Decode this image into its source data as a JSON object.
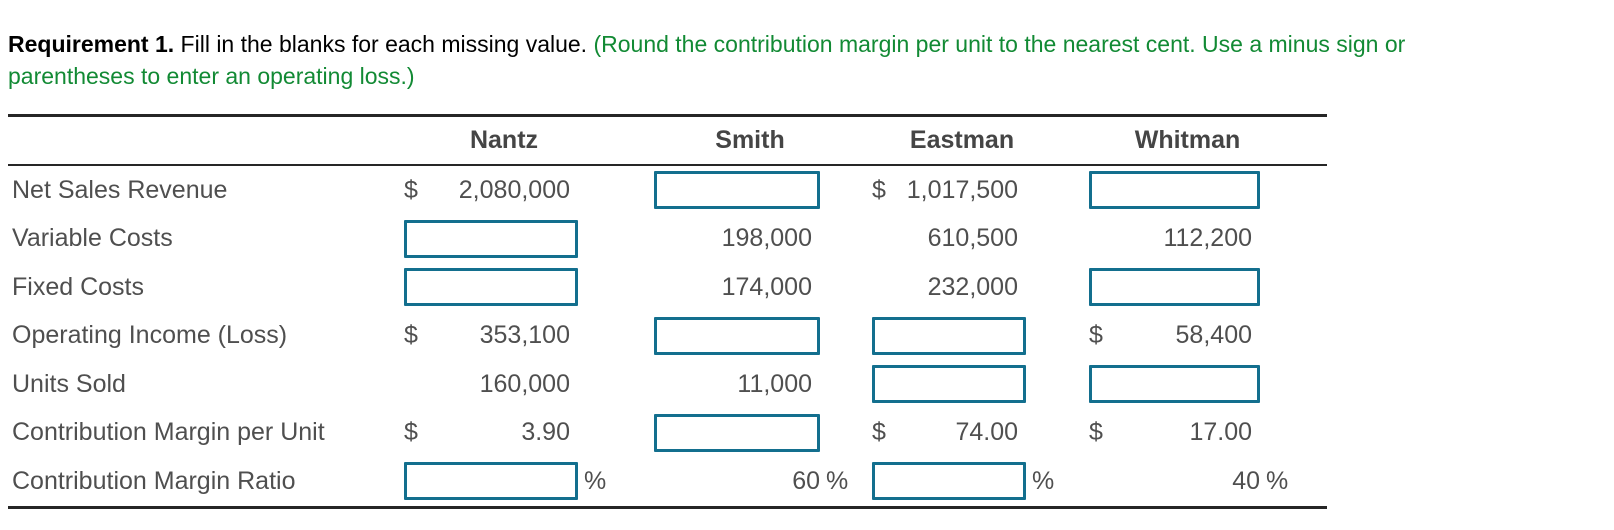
{
  "instruction": {
    "requirement_bold": "Requirement 1.",
    "body": " Fill in the blanks for each missing value. ",
    "hint_line1": "(Round the contribution margin per unit to the nearest cent. Use a minus sign or",
    "hint_line2": "parentheses to enter an operating loss.)"
  },
  "colors": {
    "hint_green": "#128a34",
    "input_border": "#136f8e",
    "rule_dark": "#262626",
    "table_text": "#4f4f4f"
  },
  "table": {
    "column_headers": [
      "Nantz",
      "Smith",
      "Eastman",
      "Whitman"
    ],
    "rows": [
      {
        "label": "Net Sales Revenue",
        "cells": [
          {
            "type": "value",
            "currency": "$",
            "value": "2,080,000"
          },
          {
            "type": "input"
          },
          {
            "type": "value",
            "currency": "$",
            "value": "1,017,500"
          },
          {
            "type": "input"
          }
        ]
      },
      {
        "label": "Variable Costs",
        "cells": [
          {
            "type": "input"
          },
          {
            "type": "value",
            "value": "198,000"
          },
          {
            "type": "value",
            "value": "610,500"
          },
          {
            "type": "value",
            "value": "112,200"
          }
        ]
      },
      {
        "label": "Fixed Costs",
        "cells": [
          {
            "type": "input"
          },
          {
            "type": "value",
            "value": "174,000"
          },
          {
            "type": "value",
            "value": "232,000"
          },
          {
            "type": "input"
          }
        ]
      },
      {
        "label": "Operating Income (Loss)",
        "cells": [
          {
            "type": "value",
            "currency": "$",
            "value": "353,100"
          },
          {
            "type": "input"
          },
          {
            "type": "input"
          },
          {
            "type": "value",
            "currency": "$",
            "value": "58,400"
          }
        ]
      },
      {
        "label": "Units Sold",
        "cells": [
          {
            "type": "value",
            "value": "160,000"
          },
          {
            "type": "value",
            "value": "11,000"
          },
          {
            "type": "input"
          },
          {
            "type": "input"
          }
        ]
      },
      {
        "label": "Contribution Margin per Unit",
        "cells": [
          {
            "type": "value",
            "currency": "$",
            "value": "3.90"
          },
          {
            "type": "input"
          },
          {
            "type": "value",
            "currency": "$",
            "value": "74.00"
          },
          {
            "type": "value",
            "currency": "$",
            "value": "17.00"
          }
        ]
      },
      {
        "label": "Contribution Margin Ratio",
        "cells": [
          {
            "type": "input",
            "suffix": "%"
          },
          {
            "type": "value",
            "value": "60",
            "suffix": "%"
          },
          {
            "type": "input",
            "suffix": "%"
          },
          {
            "type": "value",
            "value": "40",
            "suffix": "%"
          }
        ]
      }
    ]
  }
}
